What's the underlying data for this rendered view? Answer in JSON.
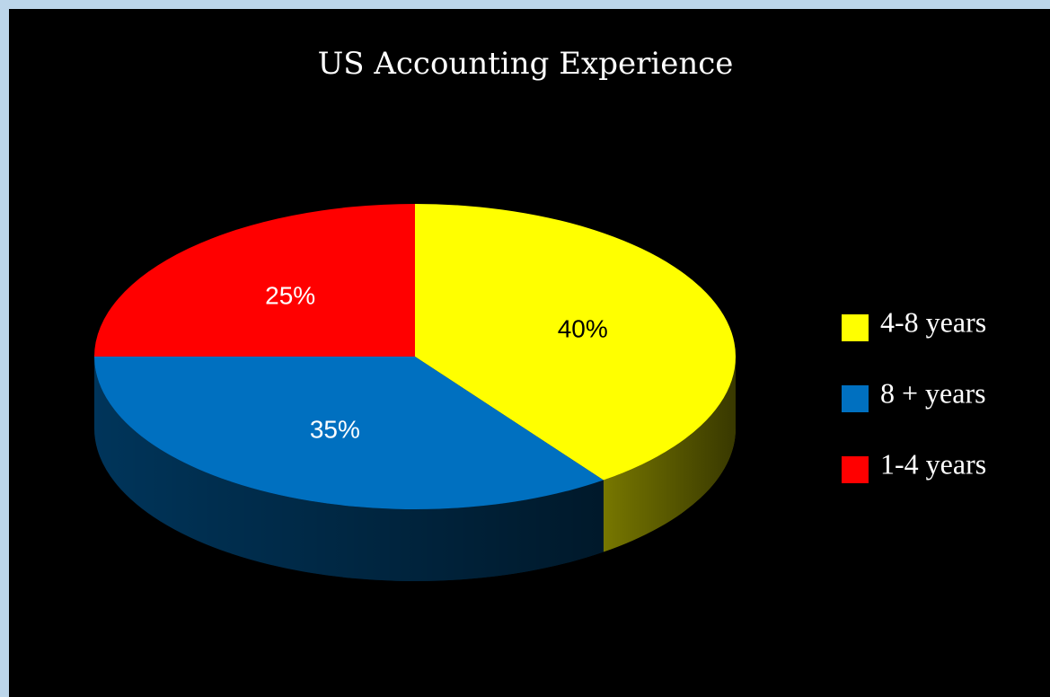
{
  "chart_data": {
    "type": "pie",
    "title": "US Accounting Experience",
    "categories": [
      "4-8 years",
      "8 + years",
      "1-4 years"
    ],
    "values": [
      40,
      35,
      25
    ],
    "value_labels": [
      "40%",
      "35%",
      "25%"
    ],
    "colors": [
      "#ffff00",
      "#0070c0",
      "#ff0000"
    ],
    "legend": "right"
  }
}
